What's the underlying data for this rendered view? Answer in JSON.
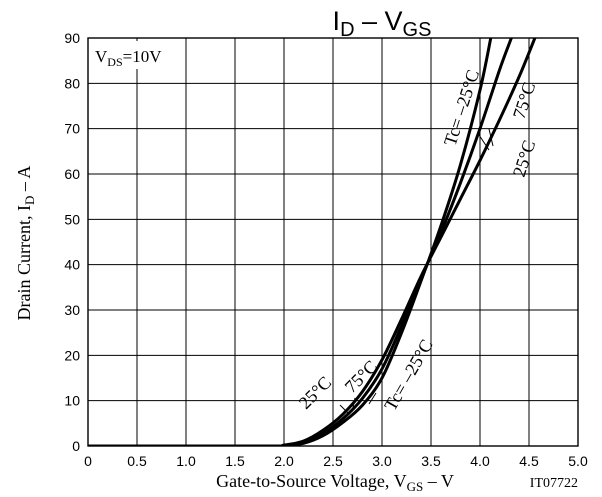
{
  "chart_data": {
    "type": "line",
    "title": {
      "main": "I",
      "sub1": "D",
      "mid": " – V",
      "sub2": "GS"
    },
    "xlabel": {
      "main": "Gate-to-Source Voltage, V",
      "sub": "GS",
      "unit": " – V"
    },
    "ylabel": {
      "main": "Drain Current, I",
      "sub": "D",
      "unit": " – A"
    },
    "condition": {
      "main": "V",
      "sub": "DS",
      "rest": "=10V"
    },
    "figure_id": "IT07722",
    "xlim": [
      0,
      5.0
    ],
    "ylim": [
      0,
      90
    ],
    "xticks": [
      0,
      0.5,
      1.0,
      1.5,
      2.0,
      2.5,
      3.0,
      3.5,
      4.0,
      4.5,
      5.0
    ],
    "xtick_labels": [
      "0",
      "0.5",
      "1.0",
      "1.5",
      "2.0",
      "2.5",
      "3.0",
      "3.5",
      "4.0",
      "4.5",
      "5.0"
    ],
    "yticks": [
      0,
      10,
      20,
      30,
      40,
      50,
      60,
      70,
      80,
      90
    ],
    "ytick_labels": [
      "0",
      "10",
      "20",
      "30",
      "40",
      "50",
      "60",
      "70",
      "80",
      "90"
    ],
    "grid": true,
    "series": [
      {
        "name": "Tc= –25°C",
        "x": [
          0,
          1.8,
          2.0,
          2.2,
          2.4,
          2.6,
          2.8,
          3.0,
          3.2,
          3.4,
          3.6,
          3.8,
          4.0,
          4.11
        ],
        "y": [
          0,
          0,
          0.05,
          0.6,
          2.3,
          5.2,
          9.0,
          15.0,
          25.0,
          36.5,
          48.5,
          62.0,
          78.5,
          90
        ]
      },
      {
        "name": "25°C",
        "x": [
          0,
          1.8,
          2.0,
          2.2,
          2.4,
          2.6,
          2.8,
          3.0,
          3.2,
          3.4,
          3.6,
          3.8,
          4.0,
          4.2,
          4.32
        ],
        "y": [
          0,
          0,
          0.1,
          0.8,
          2.8,
          6.0,
          10.5,
          17.0,
          26.5,
          37.0,
          47.0,
          58.0,
          70.0,
          83.0,
          90
        ]
      },
      {
        "name": "75°C",
        "x": [
          0,
          1.8,
          2.0,
          2.2,
          2.4,
          2.6,
          2.8,
          3.0,
          3.2,
          3.4,
          3.6,
          3.8,
          4.0,
          4.2,
          4.4,
          4.56
        ],
        "y": [
          0,
          0,
          0.2,
          1.1,
          3.5,
          7.0,
          12.0,
          19.0,
          28.0,
          37.5,
          46.0,
          54.5,
          63.0,
          72.0,
          81.5,
          90
        ]
      }
    ],
    "annotations": {
      "top": [
        "Tc= –25°C",
        "75°C",
        "25°C"
      ],
      "bottom": [
        "25°C",
        "75°C",
        "Tc= –25°C"
      ]
    }
  }
}
